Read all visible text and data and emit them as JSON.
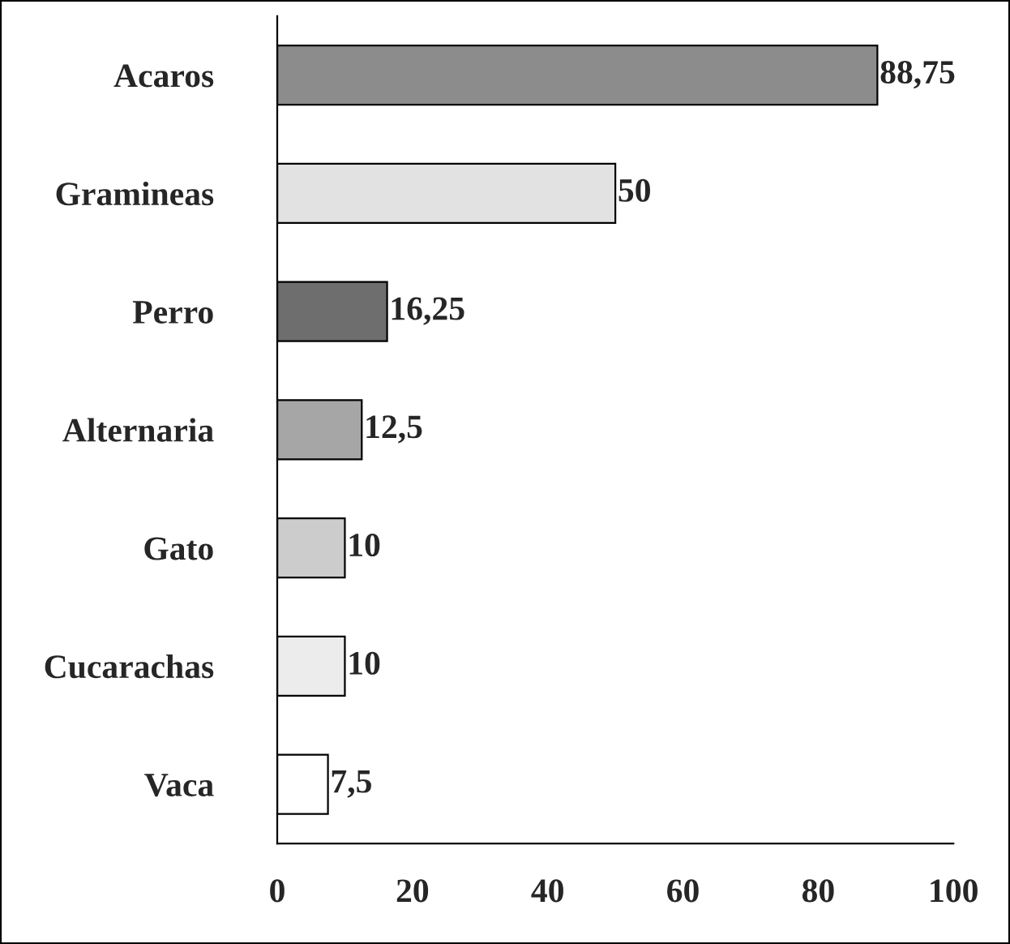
{
  "chart_data": {
    "type": "bar",
    "orientation": "horizontal",
    "categories": [
      "Acaros",
      "Gramineas",
      "Perro",
      "Alternaria",
      "Gato",
      "Cucarachas",
      "Vaca"
    ],
    "values": [
      88.75,
      50,
      16.25,
      12.5,
      10,
      10,
      7.5
    ],
    "colors": [
      "#8c8c8c",
      "#e2e2e2",
      "#6e6e6e",
      "#a6a6a6",
      "#cccccc",
      "#ececec",
      "#ffffff"
    ],
    "value_labels": [
      "88,75",
      "50",
      "16,25",
      "12,5",
      "10",
      "10",
      "7,5"
    ],
    "xlim": [
      0,
      100
    ],
    "xticks": [
      0,
      20,
      40,
      60,
      80,
      100
    ],
    "grid": false,
    "legend": false
  }
}
